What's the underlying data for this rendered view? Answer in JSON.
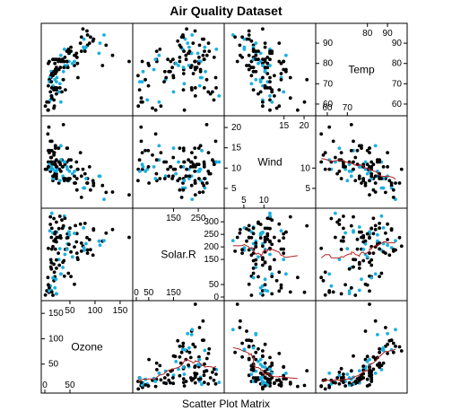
{
  "chart_data": {
    "type": "scatter",
    "title": "Air Quality Dataset",
    "xlabel": "Scatter Plot Matrix",
    "variables": [
      {
        "name": "Ozone",
        "range": [
          0,
          168
        ],
        "ticks_low": [
          0,
          50
        ],
        "ticks_high": [
          100,
          150
        ],
        "ticks_label": [
          50,
          100,
          150
        ]
      },
      {
        "name": "Solar.R",
        "range": [
          0,
          340
        ],
        "ticks_low": [
          0,
          50,
          100,
          150
        ],
        "ticks_high": [
          150,
          200,
          250,
          300
        ],
        "ticks_label": [
          150,
          250
        ]
      },
      {
        "name": "Wind",
        "range": [
          1,
          22
        ],
        "ticks_low": [
          5,
          10,
          15
        ],
        "ticks_high": [
          10,
          15,
          20
        ],
        "ticks_label": [
          5,
          10,
          15,
          20
        ]
      },
      {
        "name": "Temp",
        "range": [
          56,
          98
        ],
        "ticks_low": [
          60,
          70,
          80
        ],
        "ticks_high": [
          70,
          80,
          90
        ],
        "ticks_label": [
          60,
          70,
          80,
          90
        ]
      }
    ],
    "diag_ticks": [
      {
        "left": [
          0,
          50
        ],
        "right": [
          100,
          150
        ],
        "top": [
          50,
          100,
          150
        ],
        "bottom": [
          0,
          50
        ],
        "right_ticks": [
          50,
          100,
          150
        ]
      },
      {
        "top": [
          150,
          200,
          250
        ],
        "bottom": [
          0,
          50,
          150
        ],
        "left": [
          0,
          50,
          150
        ],
        "right": [
          150,
          200,
          250,
          300
        ]
      },
      {
        "top": [
          15,
          20
        ],
        "bottom": [
          5,
          10
        ],
        "left": [
          5,
          10
        ],
        "right": [
          15,
          20
        ]
      },
      {
        "top": [
          80,
          90
        ],
        "bottom": [
          60,
          70
        ],
        "left": [
          60,
          70,
          80
        ],
        "right": [
          60,
          70,
          80,
          90
        ]
      }
    ],
    "diag_tick_labels": {
      "ozone": {
        "top": [
          "50",
          "100",
          "150"
        ],
        "left": [
          "50",
          "100",
          "150"
        ],
        "bottom": [
          "0",
          "50"
        ]
      },
      "solar": {
        "top": [
          "150",
          "250"
        ],
        "right": [
          "0",
          "50",
          "150",
          "200",
          "250",
          "300"
        ],
        "bottom": [
          "0",
          "50",
          "150"
        ]
      },
      "wind": {
        "top": [
          "15",
          "20"
        ],
        "left": [
          "5",
          "10",
          "15",
          "20"
        ],
        "bottom": [
          "5",
          "10"
        ],
        "right": [
          "5",
          "10"
        ]
      },
      "temp": {
        "top": [
          "80",
          "90"
        ],
        "left": [
          "60",
          "70",
          "80",
          "90"
        ],
        "right": [
          "60",
          "70",
          "80",
          "90"
        ],
        "bottom": [
          "60",
          "70"
        ]
      }
    },
    "point_colors": {
      "main": "#000000",
      "highlight": "#1ab0e0"
    },
    "smooth_color": "#b22222",
    "observations": [
      [
        41,
        190,
        7.4,
        67,
        0
      ],
      [
        36,
        118,
        8.0,
        72,
        1
      ],
      [
        12,
        149,
        12.6,
        74,
        0
      ],
      [
        18,
        313,
        11.5,
        62,
        0
      ],
      [
        28,
        150,
        14.9,
        66,
        1
      ],
      [
        23,
        299,
        8.6,
        65,
        0
      ],
      [
        19,
        99,
        13.8,
        59,
        0
      ],
      [
        8,
        19,
        20.1,
        61,
        0
      ],
      [
        7,
        194,
        11.5,
        57,
        0
      ],
      [
        16,
        256,
        9.7,
        69,
        1
      ],
      [
        11,
        290,
        9.2,
        66,
        0
      ],
      [
        14,
        274,
        10.9,
        68,
        0
      ],
      [
        18,
        65,
        13.2,
        58,
        0
      ],
      [
        14,
        334,
        11.5,
        64,
        1
      ],
      [
        34,
        307,
        12.0,
        66,
        0
      ],
      [
        6,
        78,
        18.4,
        57,
        0
      ],
      [
        30,
        322,
        11.5,
        68,
        0
      ],
      [
        11,
        44,
        9.7,
        62,
        1
      ],
      [
        1,
        8,
        9.7,
        59,
        0
      ],
      [
        11,
        320,
        16.6,
        73,
        0
      ],
      [
        4,
        25,
        9.7,
        61,
        0
      ],
      [
        32,
        92,
        12.0,
        61,
        1
      ],
      [
        23,
        13,
        12.0,
        67,
        0
      ],
      [
        45,
        252,
        14.9,
        81,
        0
      ],
      [
        115,
        223,
        5.7,
        79,
        0
      ],
      [
        37,
        279,
        7.4,
        76,
        1
      ],
      [
        29,
        127,
        9.7,
        82,
        0
      ],
      [
        71,
        291,
        13.8,
        90,
        0
      ],
      [
        39,
        323,
        11.5,
        87,
        1
      ],
      [
        23,
        148,
        8.0,
        82,
        0
      ],
      [
        21,
        191,
        14.9,
        77,
        0
      ],
      [
        37,
        284,
        20.7,
        72,
        0
      ],
      [
        20,
        37,
        9.2,
        72,
        1
      ],
      [
        12,
        120,
        11.5,
        73,
        0
      ],
      [
        13,
        137,
        10.3,
        76,
        0
      ],
      [
        135,
        269,
        4.1,
        84,
        0
      ],
      [
        49,
        248,
        9.2,
        85,
        1
      ],
      [
        32,
        236,
        9.2,
        81,
        0
      ],
      [
        64,
        175,
        4.6,
        83,
        0
      ],
      [
        40,
        314,
        10.9,
        83,
        0
      ],
      [
        77,
        276,
        5.1,
        88,
        1
      ],
      [
        97,
        267,
        6.3,
        92,
        0
      ],
      [
        97,
        272,
        5.7,
        92,
        0
      ],
      [
        85,
        175,
        7.4,
        89,
        0
      ],
      [
        10,
        264,
        14.3,
        73,
        1
      ],
      [
        27,
        175,
        14.9,
        81,
        0
      ],
      [
        7,
        48,
        14.3,
        80,
        0
      ],
      [
        48,
        260,
        6.9,
        81,
        1
      ],
      [
        35,
        274,
        10.3,
        82,
        0
      ],
      [
        61,
        285,
        6.3,
        84,
        0
      ],
      [
        79,
        187,
        5.1,
        87,
        1
      ],
      [
        63,
        220,
        11.5,
        85,
        0
      ],
      [
        16,
        7,
        6.9,
        74,
        0
      ],
      [
        80,
        294,
        8.6,
        86,
        0
      ],
      [
        108,
        223,
        8.0,
        85,
        1
      ],
      [
        20,
        81,
        8.6,
        82,
        0
      ],
      [
        52,
        82,
        12.0,
        86,
        0
      ],
      [
        82,
        213,
        7.4,
        88,
        1
      ],
      [
        50,
        275,
        7.4,
        86,
        0
      ],
      [
        64,
        253,
        7.4,
        83,
        0
      ],
      [
        59,
        254,
        9.2,
        81,
        1
      ],
      [
        39,
        83,
        6.9,
        81,
        0
      ],
      [
        9,
        24,
        13.8,
        81,
        0
      ],
      [
        16,
        77,
        7.4,
        82,
        1
      ],
      [
        122,
        255,
        4.0,
        89,
        0
      ],
      [
        89,
        229,
        10.3,
        90,
        0
      ],
      [
        110,
        207,
        8.0,
        90,
        1
      ],
      [
        44,
        192,
        11.5,
        86,
        0
      ],
      [
        28,
        273,
        11.5,
        82,
        0
      ],
      [
        65,
        157,
        9.7,
        80,
        0
      ],
      [
        22,
        71,
        10.3,
        77,
        1
      ],
      [
        59,
        51,
        6.3,
        79,
        0
      ],
      [
        23,
        115,
        7.4,
        76,
        0
      ],
      [
        31,
        244,
        10.9,
        78,
        0
      ],
      [
        44,
        190,
        10.3,
        78,
        1
      ],
      [
        21,
        259,
        15.5,
        77,
        0
      ],
      [
        9,
        36,
        14.3,
        72,
        0
      ],
      [
        45,
        212,
        9.7,
        79,
        1
      ],
      [
        168,
        238,
        3.4,
        81,
        0
      ],
      [
        73,
        215,
        8.0,
        86,
        0
      ],
      [
        76,
        203,
        9.7,
        97,
        0
      ],
      [
        118,
        225,
        2.3,
        94,
        1
      ],
      [
        84,
        237,
        6.3,
        96,
        0
      ],
      [
        85,
        188,
        6.3,
        94,
        0
      ],
      [
        96,
        167,
        6.9,
        91,
        0
      ],
      [
        78,
        197,
        5.1,
        92,
        1
      ],
      [
        73,
        183,
        2.8,
        93,
        0
      ],
      [
        91,
        189,
        4.6,
        93,
        0
      ],
      [
        47,
        95,
        7.4,
        87,
        0
      ],
      [
        32,
        92,
        15.5,
        84,
        1
      ],
      [
        20,
        252,
        10.9,
        80,
        0
      ],
      [
        23,
        220,
        10.3,
        78,
        0
      ],
      [
        21,
        230,
        10.9,
        75,
        0
      ],
      [
        24,
        259,
        9.7,
        73,
        1
      ],
      [
        44,
        236,
        14.9,
        81,
        0
      ],
      [
        21,
        259,
        15.5,
        76,
        0
      ],
      [
        28,
        238,
        6.3,
        77,
        0
      ],
      [
        9,
        24,
        10.9,
        71,
        1
      ],
      [
        13,
        112,
        11.5,
        71,
        0
      ],
      [
        46,
        237,
        6.9,
        78,
        0
      ],
      [
        18,
        224,
        13.8,
        67,
        0
      ],
      [
        13,
        27,
        10.3,
        76,
        1
      ],
      [
        24,
        238,
        10.3,
        68,
        0
      ],
      [
        16,
        201,
        8.0,
        82,
        0
      ],
      [
        13,
        238,
        12.6,
        64,
        0
      ],
      [
        23,
        14,
        9.2,
        71,
        1
      ],
      [
        36,
        139,
        10.3,
        81,
        0
      ],
      [
        7,
        49,
        10.3,
        69,
        0
      ],
      [
        14,
        20,
        16.6,
        63,
        0
      ],
      [
        30,
        193,
        6.9,
        70,
        1
      ],
      [
        14,
        191,
        14.3,
        75,
        0
      ],
      [
        18,
        131,
        8.0,
        76,
        0
      ],
      [
        20,
        223,
        11.5,
        68,
        0
      ],
      [
        66,
        150,
        9.7,
        73,
        0
      ],
      [
        40,
        170,
        11.5,
        79,
        1
      ],
      [
        59,
        200,
        8.0,
        84,
        0
      ],
      [
        52,
        180,
        10.3,
        88,
        0
      ],
      [
        55,
        160,
        8.6,
        80,
        1
      ],
      [
        48,
        210,
        12.0,
        85,
        0
      ],
      [
        38,
        145,
        7.4,
        78,
        0
      ]
    ]
  }
}
